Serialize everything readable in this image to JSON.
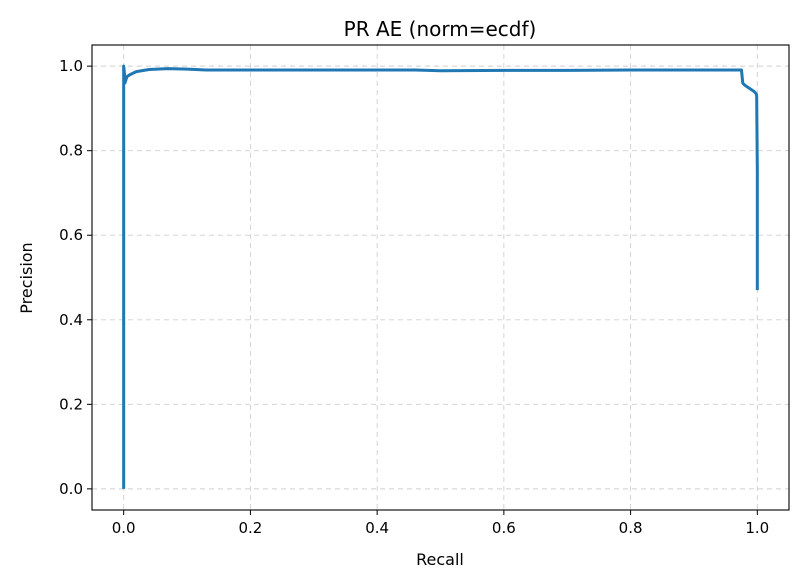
{
  "chart_data": {
    "type": "line",
    "title": "PR AE (norm=ecdf)",
    "xlabel": "Recall",
    "ylabel": "Precision",
    "xlim": [
      -0.05,
      1.05
    ],
    "ylim": [
      -0.05,
      1.05
    ],
    "xticks": [
      0.0,
      0.2,
      0.4,
      0.6,
      0.8,
      1.0
    ],
    "xtick_labels": [
      "0.0",
      "0.2",
      "0.4",
      "0.6",
      "0.8",
      "1.0"
    ],
    "yticks": [
      0.0,
      0.2,
      0.4,
      0.6,
      0.8,
      1.0
    ],
    "ytick_labels": [
      "0.0",
      "0.2",
      "0.4",
      "0.6",
      "0.8",
      "1.0"
    ],
    "grid": true,
    "series": [
      {
        "color": "#1f77b4",
        "x": [
          0.0,
          0.0,
          0.0,
          0.002,
          0.002,
          0.005,
          0.01,
          0.02,
          0.04,
          0.07,
          0.1,
          0.13,
          0.2,
          0.3,
          0.4,
          0.46,
          0.5,
          0.6,
          0.7,
          0.8,
          0.9,
          0.975,
          0.977,
          0.98,
          0.99,
          0.995,
          0.998,
          0.999,
          1.0,
          1.0
        ],
        "y": [
          0.0,
          0.5,
          1.0,
          0.97,
          0.96,
          0.975,
          0.98,
          0.987,
          0.992,
          0.994,
          0.993,
          0.991,
          0.991,
          0.991,
          0.991,
          0.991,
          0.989,
          0.99,
          0.99,
          0.991,
          0.991,
          0.991,
          0.96,
          0.955,
          0.945,
          0.94,
          0.935,
          0.93,
          0.75,
          0.47
        ]
      }
    ]
  }
}
